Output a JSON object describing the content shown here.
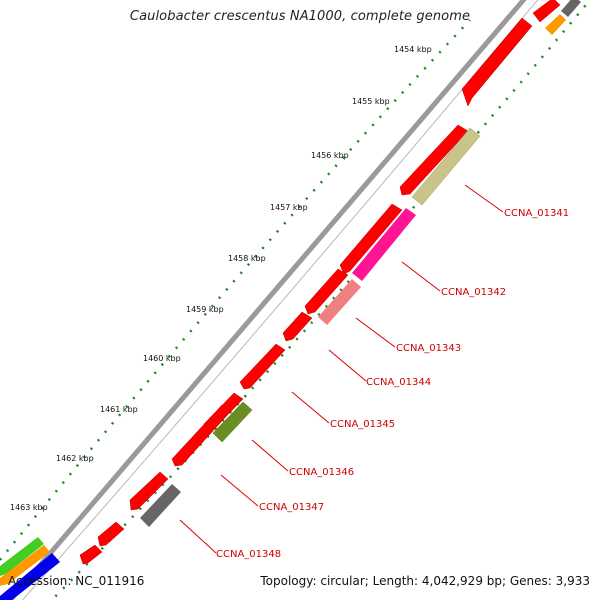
{
  "title": "Caulobacter crescentus NA1000, complete genome",
  "footer": {
    "accession": "Accession: NC_011916",
    "summary": "Topology: circular; Length: 4,042,929 bp; Genes: 3,933"
  },
  "scale_labels": [
    "1454 kbp",
    "1455 kbp",
    "1456 kbp",
    "1457 kbp",
    "1458 kbp",
    "1459 kbp",
    "1460 kbp",
    "1461 kbp",
    "1462 kbp",
    "1463 kbp"
  ],
  "gene_labels": [
    "CCNA_01341",
    "CCNA_01342",
    "CCNA_01343",
    "CCNA_01344",
    "CCNA_01345",
    "CCNA_01346",
    "CCNA_01347",
    "CCNA_01348"
  ],
  "colors": {
    "cds": "#ff0000",
    "backbone": "#9a9a9a",
    "tick": "#1a8a1a",
    "label_line": "#dd0000",
    "olive": "#c8c48a",
    "magenta": "#ff1493",
    "pink": "#f08080",
    "green": "#6b8e23",
    "gray": "#666666",
    "orange": "#ff9900"
  }
}
